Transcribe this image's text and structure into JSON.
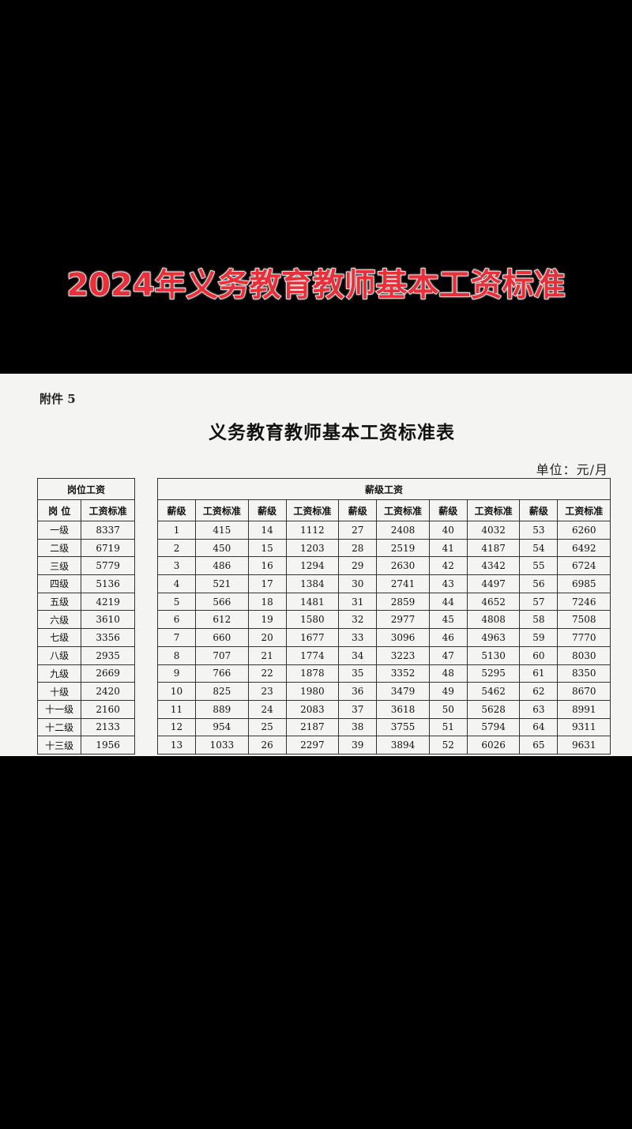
{
  "video_title": "2024年义务教育教师基本工资标准",
  "document": {
    "attachment": "附件 5",
    "title": "义务教育教师基本工资标准表",
    "unit": "单位：元/月",
    "post_table": {
      "header": "岗位工资",
      "columns": [
        "岗 位",
        "工资标准"
      ],
      "rows": [
        [
          "一级",
          8337
        ],
        [
          "二级",
          6719
        ],
        [
          "三级",
          5779
        ],
        [
          "四级",
          5136
        ],
        [
          "五级",
          4219
        ],
        [
          "六级",
          3610
        ],
        [
          "七级",
          3356
        ],
        [
          "八级",
          2935
        ],
        [
          "九级",
          2669
        ],
        [
          "十级",
          2420
        ],
        [
          "十一级",
          2160
        ],
        [
          "十二级",
          2133
        ],
        [
          "十三级",
          1956
        ]
      ]
    },
    "grade_table": {
      "header": "薪级工资",
      "columns": [
        "薪级",
        "工资标准",
        "薪级",
        "工资标准",
        "薪级",
        "工资标准",
        "薪级",
        "工资标准",
        "薪级",
        "工资标准"
      ],
      "rows": [
        [
          1,
          415,
          14,
          1112,
          27,
          2408,
          40,
          4032,
          53,
          6260
        ],
        [
          2,
          450,
          15,
          1203,
          28,
          2519,
          41,
          4187,
          54,
          6492
        ],
        [
          3,
          486,
          16,
          1294,
          29,
          2630,
          42,
          4342,
          55,
          6724
        ],
        [
          4,
          521,
          17,
          1384,
          30,
          2741,
          43,
          4497,
          56,
          6985
        ],
        [
          5,
          566,
          18,
          1481,
          31,
          2859,
          44,
          4652,
          57,
          7246
        ],
        [
          6,
          612,
          19,
          1580,
          32,
          2977,
          45,
          4808,
          58,
          7508
        ],
        [
          7,
          660,
          20,
          1677,
          33,
          3096,
          46,
          4963,
          59,
          7770
        ],
        [
          8,
          707,
          21,
          1774,
          34,
          3223,
          47,
          5130,
          60,
          8030
        ],
        [
          9,
          766,
          22,
          1878,
          35,
          3352,
          48,
          5295,
          61,
          8350
        ],
        [
          10,
          825,
          23,
          1980,
          36,
          3479,
          49,
          5462,
          62,
          8670
        ],
        [
          11,
          889,
          24,
          2083,
          37,
          3618,
          50,
          5628,
          63,
          8991
        ],
        [
          12,
          954,
          25,
          2187,
          38,
          3755,
          51,
          5794,
          64,
          9311
        ],
        [
          13,
          1033,
          26,
          2297,
          39,
          3894,
          52,
          6026,
          65,
          9631
        ]
      ]
    }
  }
}
